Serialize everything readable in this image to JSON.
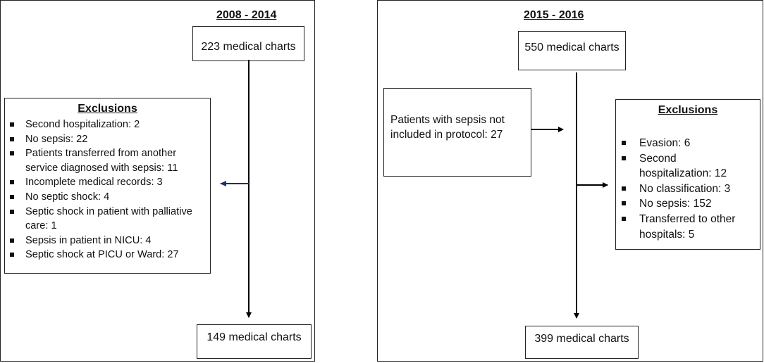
{
  "left": {
    "period": "2008 - 2014",
    "start": "223 medical charts",
    "end": "149 medical charts",
    "exclusions": {
      "title": "Exclusions",
      "items": [
        "Second hospitalization: 2",
        "No sepsis: 22",
        "Patients transferred  from another",
        "service diagnosed with sepsis: 11",
        "Incomplete medical records: 3",
        "No septic shock: 4",
        "Septic shock in patient with palliative",
        "care: 1",
        "Sepsis in patient in NICU: 4",
        "Septic shock at PICU or Ward: 27"
      ]
    }
  },
  "right": {
    "period": "2015 - 2016",
    "start": "550 medical charts",
    "end": "399 medical charts",
    "not_included": {
      "line1": "Patients with sepsis not",
      "line2": "included in protocol: 27"
    },
    "exclusions": {
      "title": "Exclusions",
      "items": [
        "Evasion: 6",
        "Second",
        "hospitalization: 12",
        "No classification: 3",
        "No sepsis: 152",
        "Transferred to other",
        "hospitals: 5"
      ]
    }
  },
  "colors": {
    "left_exclusion_arrow": "#1f2f6b",
    "line": "#000000"
  }
}
